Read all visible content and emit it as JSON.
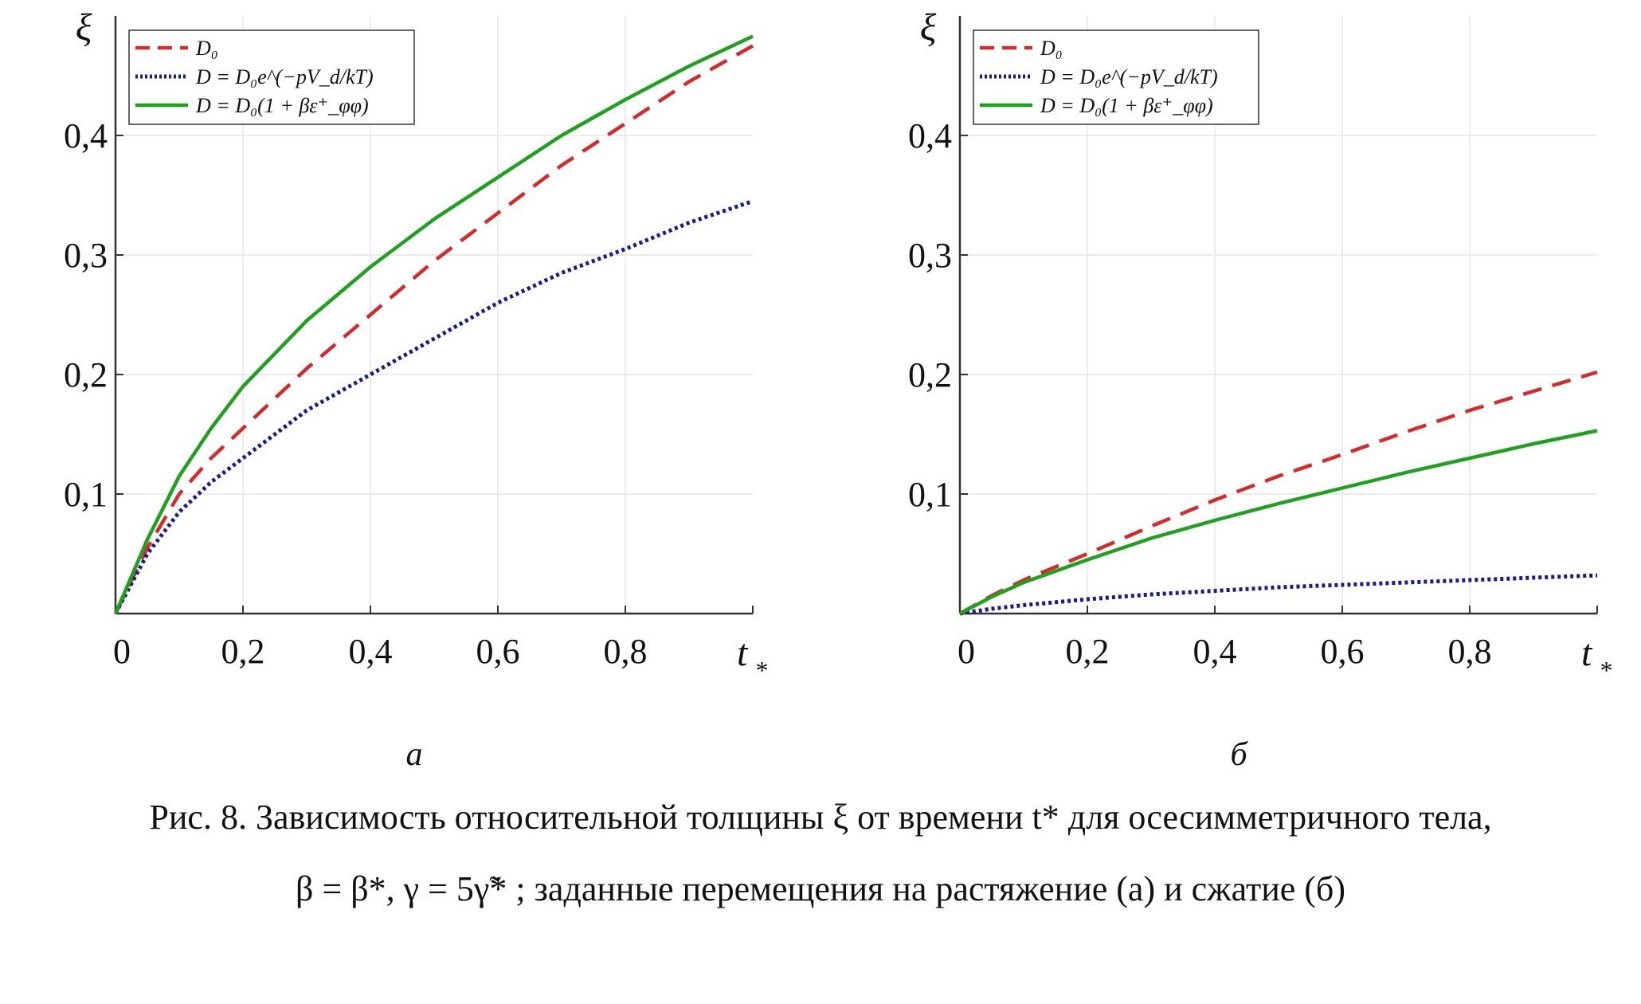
{
  "chart_data": [
    {
      "type": "line",
      "panel_label": "а",
      "ylabel": "ξ",
      "xlabel_main": "t",
      "xlabel_sub": "*",
      "xlim": [
        0,
        1
      ],
      "ylim": [
        0,
        0.5
      ],
      "xticks": [
        "0",
        "0,2",
        "0,4",
        "0,6",
        "0,8"
      ],
      "xtick_values": [
        0,
        0.2,
        0.4,
        0.6,
        0.8
      ],
      "yticks": [
        "0,1",
        "0,2",
        "0,3",
        "0,4"
      ],
      "ytick_values": [
        0.1,
        0.2,
        0.3,
        0.4
      ],
      "grid": true,
      "legend_position": "top-left",
      "x": [
        0,
        0.05,
        0.1,
        0.15,
        0.2,
        0.3,
        0.4,
        0.5,
        0.6,
        0.7,
        0.8,
        0.9,
        1.0
      ],
      "series": [
        {
          "name": "D₀",
          "color": "#d42a2a",
          "dash": "dashed",
          "values": [
            0,
            0.055,
            0.1,
            0.13,
            0.155,
            0.205,
            0.25,
            0.295,
            0.335,
            0.375,
            0.41,
            0.445,
            0.475
          ]
        },
        {
          "name": "D = D₀e^(−pV_d/kT)",
          "color": "#1a1a8c",
          "dash": "dotted",
          "values": [
            0,
            0.05,
            0.085,
            0.11,
            0.13,
            0.17,
            0.2,
            0.23,
            0.26,
            0.285,
            0.305,
            0.327,
            0.345
          ]
        },
        {
          "name": "D = D₀(1 + βε⁺_φφ)",
          "color": "#1fa01f",
          "dash": "solid",
          "values": [
            0,
            0.062,
            0.115,
            0.155,
            0.19,
            0.245,
            0.29,
            0.33,
            0.365,
            0.4,
            0.43,
            0.458,
            0.483
          ]
        }
      ]
    },
    {
      "type": "line",
      "panel_label": "б",
      "ylabel": "ξ",
      "xlabel_main": "t",
      "xlabel_sub": "*",
      "xlim": [
        0,
        1
      ],
      "ylim": [
        0,
        0.5
      ],
      "xticks": [
        "0",
        "0,2",
        "0,4",
        "0,6",
        "0,8"
      ],
      "xtick_values": [
        0,
        0.2,
        0.4,
        0.6,
        0.8
      ],
      "yticks": [
        "0,1",
        "0,2",
        "0,3",
        "0,4"
      ],
      "ytick_values": [
        0.1,
        0.2,
        0.3,
        0.4
      ],
      "grid": true,
      "legend_position": "top-left",
      "x": [
        0,
        0.05,
        0.1,
        0.2,
        0.3,
        0.4,
        0.5,
        0.6,
        0.7,
        0.8,
        0.9,
        1.0
      ],
      "series": [
        {
          "name": "D₀",
          "color": "#d42a2a",
          "dash": "dashed",
          "values": [
            0,
            0.015,
            0.028,
            0.05,
            0.073,
            0.095,
            0.115,
            0.133,
            0.152,
            0.17,
            0.186,
            0.202
          ]
        },
        {
          "name": "D = D₀e^(−pV_d/kT)",
          "color": "#1a1a8c",
          "dash": "dotted",
          "values": [
            0,
            0.004,
            0.007,
            0.012,
            0.016,
            0.019,
            0.022,
            0.024,
            0.026,
            0.028,
            0.03,
            0.032
          ]
        },
        {
          "name": "D = D₀(1 + βε⁺_φφ)",
          "color": "#1fa01f",
          "dash": "solid",
          "values": [
            0,
            0.014,
            0.026,
            0.045,
            0.063,
            0.078,
            0.092,
            0.105,
            0.118,
            0.13,
            0.142,
            0.153
          ]
        }
      ]
    }
  ],
  "caption": {
    "line1": "Рис. 8. Зависимость относительной толщины ξ от времени t* для осесимметричного тела,",
    "line2": "β = β*, γ = 5γ̃* ; заданные перемещения на растяжение (а) и сжатие (б)"
  }
}
